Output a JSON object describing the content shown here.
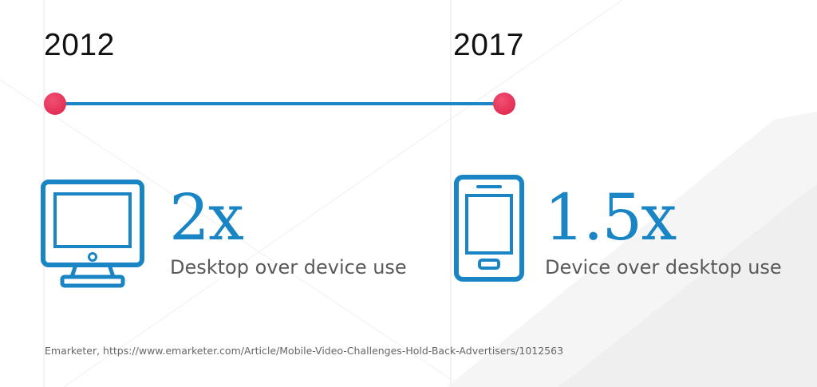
{
  "timeline": {
    "start_year": "2012",
    "end_year": "2017",
    "line_color": "#1a85c4",
    "marker_color": "#e8355a"
  },
  "stats": [
    {
      "icon": "desktop-monitor-icon",
      "value": "2x",
      "label": "Desktop over device use"
    },
    {
      "icon": "smartphone-icon",
      "value": "1.5x",
      "label": "Device over desktop use"
    }
  ],
  "source": "Emarketer, https://www.emarketer.com/Article/Mobile-Video-Challenges-Hold-Back-Advertisers/1012563",
  "colors": {
    "accent_blue": "#1a85c4",
    "text_gray": "#5a5a5a",
    "marker_pink": "#e8355a"
  }
}
